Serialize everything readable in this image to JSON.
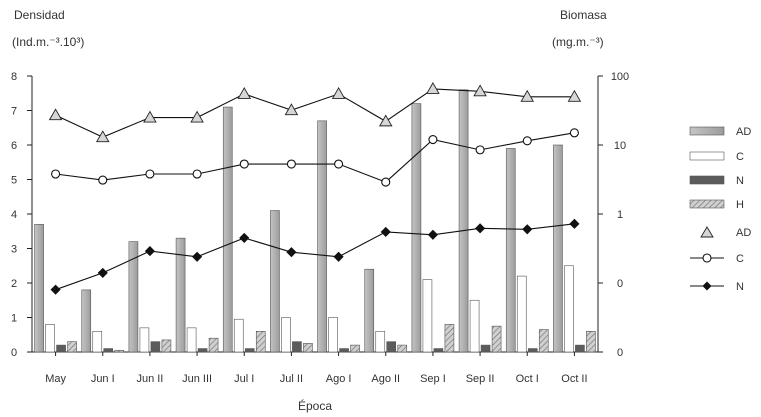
{
  "chart_data": {
    "type": "bar",
    "categories": [
      "May",
      "Jun I",
      "Jun II",
      "Jun III",
      "Jul I",
      "Jul II",
      "Ago I",
      "Ago II",
      "Sep I",
      "Sep II",
      "Oct I",
      "Oct II"
    ],
    "xlabel": "Época",
    "left_axis": {
      "title_line1": "Densidad",
      "title_line2": "(Ind.m.⁻³.10³)",
      "ylim": [
        0,
        8
      ],
      "ticks": [
        "0",
        "1",
        "2",
        "3",
        "4",
        "5",
        "6",
        "7",
        "8"
      ]
    },
    "right_axis": {
      "title_line1": "Biomasa",
      "title_line2": "(mg.m.⁻³)",
      "scale": "log",
      "ylim": [
        0.01,
        100
      ],
      "ticks": [
        {
          "value": 0.01,
          "label": "0"
        },
        {
          "value": 0.1,
          "label": "0"
        },
        {
          "value": 1,
          "label": "1"
        },
        {
          "value": 10,
          "label": "10"
        },
        {
          "value": 100,
          "label": "100"
        }
      ]
    },
    "bar_series": [
      {
        "name": "AD",
        "axis": "left",
        "color": "#b4b4b4",
        "values": [
          3.7,
          1.8,
          3.2,
          3.3,
          7.1,
          4.1,
          6.7,
          2.4,
          7.2,
          7.6,
          5.9,
          6.0
        ]
      },
      {
        "name": "C",
        "axis": "left",
        "color": "#ffffff",
        "values": [
          0.8,
          0.6,
          0.7,
          0.7,
          0.95,
          1.0,
          1.0,
          0.6,
          2.1,
          1.5,
          2.2,
          2.5
        ]
      },
      {
        "name": "N",
        "axis": "left",
        "color": "#606060",
        "values": [
          0.2,
          0.1,
          0.3,
          0.1,
          0.1,
          0.3,
          0.1,
          0.3,
          0.1,
          0.2,
          0.1,
          0.2
        ]
      },
      {
        "name": "H",
        "axis": "left",
        "color": "#a8a8a8",
        "values": [
          0.3,
          0.05,
          0.35,
          0.4,
          0.6,
          0.25,
          0.2,
          0.2,
          0.8,
          0.75,
          0.65,
          0.6
        ]
      }
    ],
    "line_series": [
      {
        "name": "AD",
        "axis": "right",
        "marker": "triangle",
        "values": [
          27,
          13,
          25,
          25,
          55,
          32,
          55,
          22,
          65,
          60,
          50,
          50
        ]
      },
      {
        "name": "C",
        "axis": "right",
        "marker": "circle-open",
        "values": [
          3.8,
          3.1,
          3.8,
          3.8,
          5.3,
          5.3,
          5.3,
          2.9,
          12,
          8.5,
          11.5,
          15
        ]
      },
      {
        "name": "N",
        "axis": "right",
        "marker": "diamond-filled",
        "values": [
          0.08,
          0.14,
          0.29,
          0.24,
          0.45,
          0.28,
          0.24,
          0.55,
          0.5,
          0.62,
          0.6,
          0.72
        ]
      }
    ],
    "legend": {
      "position": "right",
      "entries": [
        "AD",
        "C",
        "N",
        "H",
        "AD",
        "C",
        "N"
      ]
    },
    "grid": false
  }
}
